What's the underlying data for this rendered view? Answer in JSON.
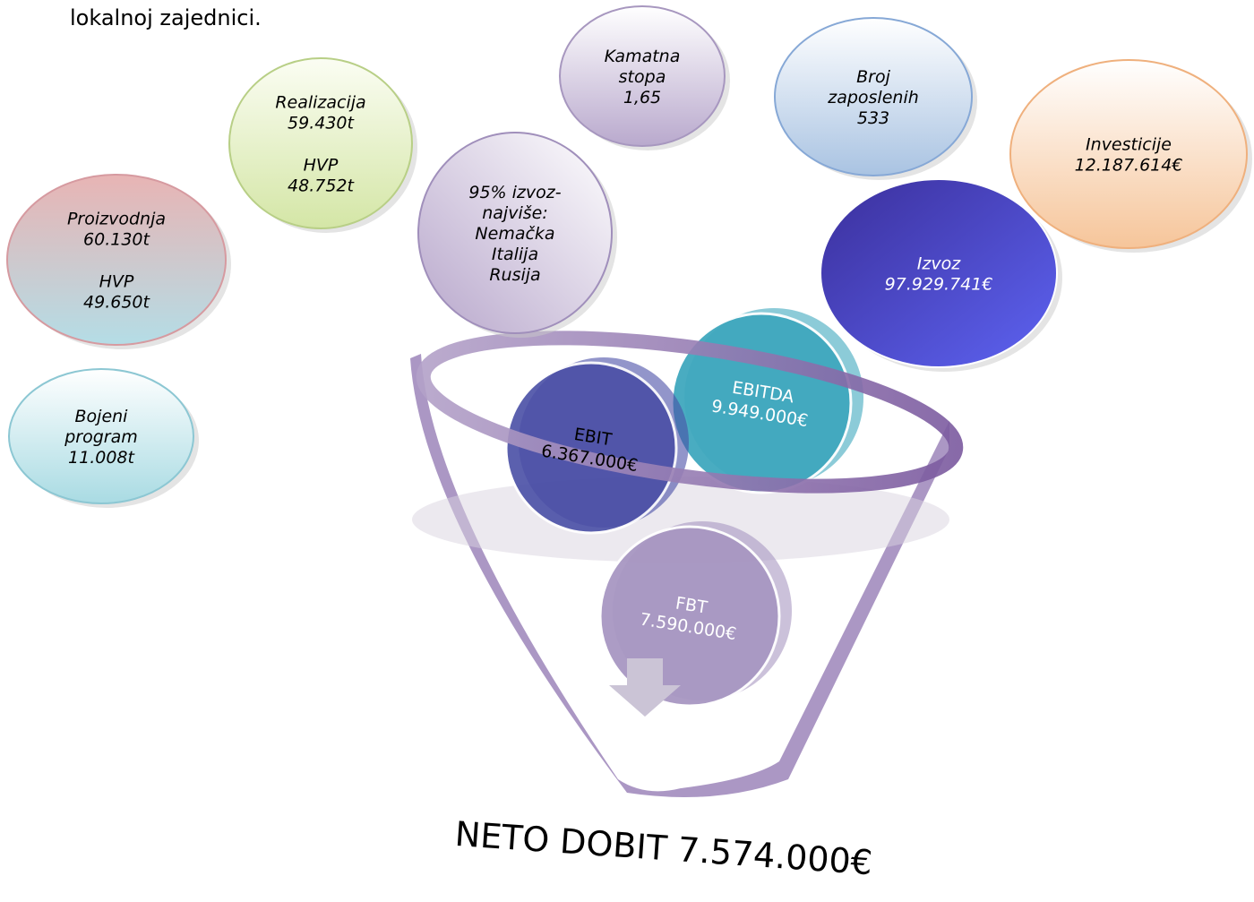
{
  "intro": "lokalnoj zajednici.",
  "bubbles": [
    {
      "lines": [
        [
          "Proizvodnja",
          "60.130t"
        ],
        [
          "HVP",
          "49.650t"
        ]
      ]
    },
    {
      "lines": [
        [
          "Bojeni",
          "program",
          "11.008t"
        ]
      ]
    },
    {
      "lines": [
        [
          "Realizacija",
          "59.430t"
        ],
        [
          "HVP",
          "48.752t"
        ]
      ]
    },
    {
      "lines": [
        [
          "95% izvoz-",
          "najviše:",
          "Nemačka",
          "Italija",
          "Rusija"
        ]
      ]
    },
    {
      "lines": [
        [
          "Kamatna",
          "stopa",
          "1,65"
        ]
      ]
    },
    {
      "lines": [
        [
          "Broj",
          "zaposlenih",
          "533"
        ]
      ]
    },
    {
      "lines": [
        [
          "Investicije",
          "12.187.614€"
        ]
      ]
    },
    {
      "lines": [
        [
          "Izvoz",
          "97.929.741€"
        ]
      ]
    }
  ],
  "funnel": [
    {
      "lines": [
        "EBITDA",
        "9.949.000€"
      ]
    },
    {
      "lines": [
        "EBIT",
        "6.367.000€"
      ]
    },
    {
      "lines": [
        "FBT",
        "7.590.000€"
      ]
    }
  ],
  "result": "NETO DOBIT 7.574.000€"
}
